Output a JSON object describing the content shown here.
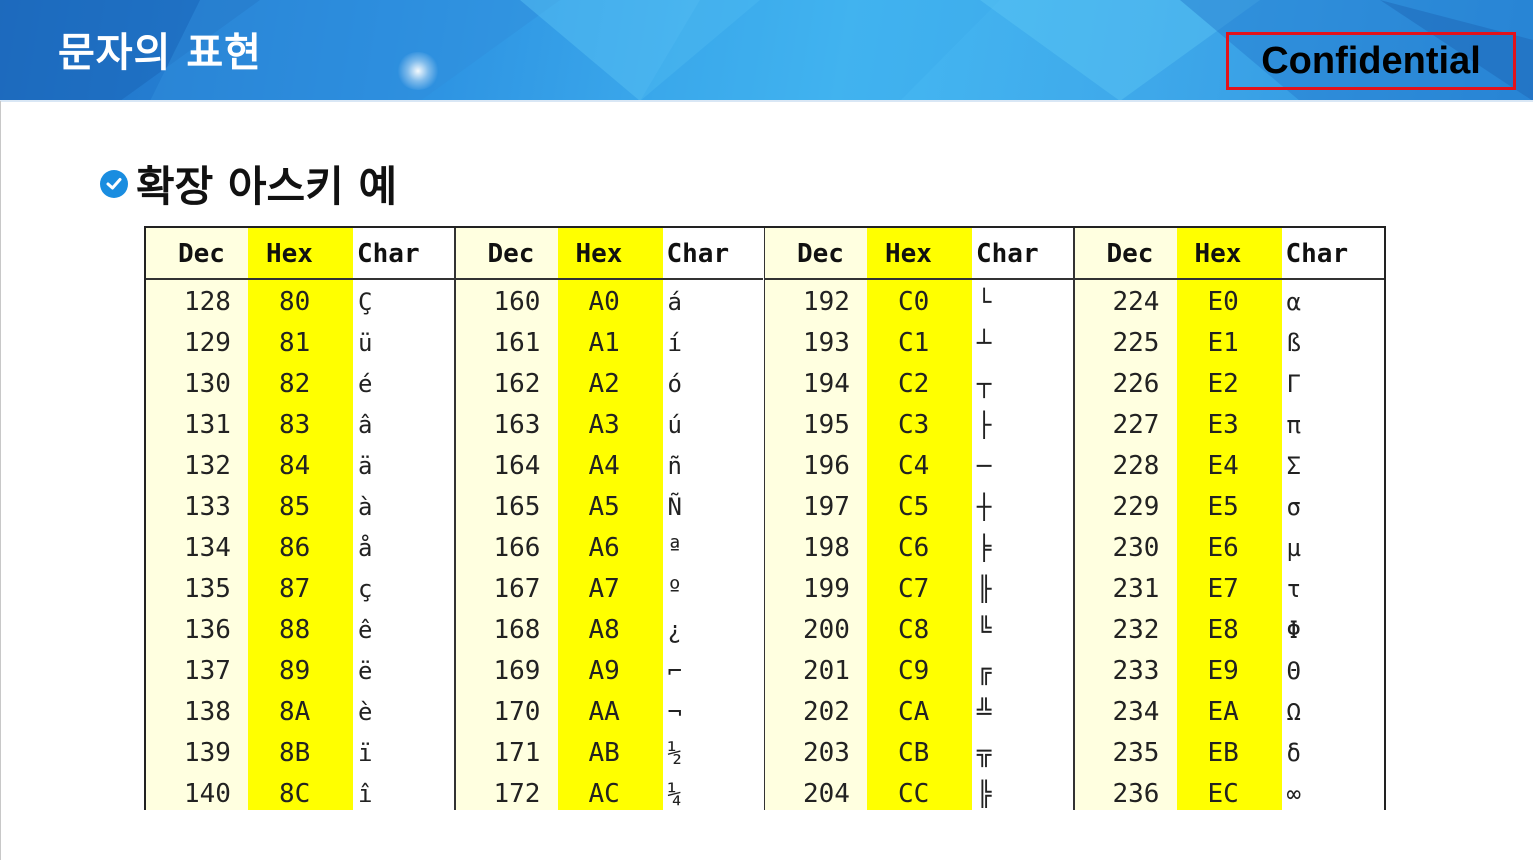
{
  "header": {
    "title": "문자의 표현",
    "badge": "Confidential",
    "colors": {
      "banner": "#2a8ee0",
      "badge_border": "#e3121b"
    }
  },
  "section": {
    "icon": "check-circle-icon",
    "title": "확장 아스키 예"
  },
  "table": {
    "columns": [
      "Dec",
      "Hex",
      "Char"
    ],
    "colors": {
      "dec_column": "#ffffe0",
      "hex_column": "#ffff00"
    },
    "groups": [
      {
        "rows": [
          {
            "dec": "128",
            "hex": "80",
            "char": "Ç"
          },
          {
            "dec": "129",
            "hex": "81",
            "char": "ü"
          },
          {
            "dec": "130",
            "hex": "82",
            "char": "é"
          },
          {
            "dec": "131",
            "hex": "83",
            "char": "â"
          },
          {
            "dec": "132",
            "hex": "84",
            "char": "ä"
          },
          {
            "dec": "133",
            "hex": "85",
            "char": "à"
          },
          {
            "dec": "134",
            "hex": "86",
            "char": "å"
          },
          {
            "dec": "135",
            "hex": "87",
            "char": "ç"
          },
          {
            "dec": "136",
            "hex": "88",
            "char": "ê"
          },
          {
            "dec": "137",
            "hex": "89",
            "char": "ë"
          },
          {
            "dec": "138",
            "hex": "8A",
            "char": "è"
          },
          {
            "dec": "139",
            "hex": "8B",
            "char": "ï"
          },
          {
            "dec": "140",
            "hex": "8C",
            "char": "î"
          }
        ]
      },
      {
        "rows": [
          {
            "dec": "160",
            "hex": "A0",
            "char": "á"
          },
          {
            "dec": "161",
            "hex": "A1",
            "char": "í"
          },
          {
            "dec": "162",
            "hex": "A2",
            "char": "ó"
          },
          {
            "dec": "163",
            "hex": "A3",
            "char": "ú"
          },
          {
            "dec": "164",
            "hex": "A4",
            "char": "ñ"
          },
          {
            "dec": "165",
            "hex": "A5",
            "char": "Ñ"
          },
          {
            "dec": "166",
            "hex": "A6",
            "char": "ª"
          },
          {
            "dec": "167",
            "hex": "A7",
            "char": "º"
          },
          {
            "dec": "168",
            "hex": "A8",
            "char": "¿"
          },
          {
            "dec": "169",
            "hex": "A9",
            "char": "⌐"
          },
          {
            "dec": "170",
            "hex": "AA",
            "char": "¬"
          },
          {
            "dec": "171",
            "hex": "AB",
            "char": "½"
          },
          {
            "dec": "172",
            "hex": "AC",
            "char": "¼"
          }
        ]
      },
      {
        "rows": [
          {
            "dec": "192",
            "hex": "C0",
            "char": "└"
          },
          {
            "dec": "193",
            "hex": "C1",
            "char": "┴"
          },
          {
            "dec": "194",
            "hex": "C2",
            "char": "┬"
          },
          {
            "dec": "195",
            "hex": "C3",
            "char": "├"
          },
          {
            "dec": "196",
            "hex": "C4",
            "char": "─"
          },
          {
            "dec": "197",
            "hex": "C5",
            "char": "┼"
          },
          {
            "dec": "198",
            "hex": "C6",
            "char": "╞"
          },
          {
            "dec": "199",
            "hex": "C7",
            "char": "╟"
          },
          {
            "dec": "200",
            "hex": "C8",
            "char": "╚"
          },
          {
            "dec": "201",
            "hex": "C9",
            "char": "╔"
          },
          {
            "dec": "202",
            "hex": "CA",
            "char": "╩"
          },
          {
            "dec": "203",
            "hex": "CB",
            "char": "╦"
          },
          {
            "dec": "204",
            "hex": "CC",
            "char": "╠"
          }
        ]
      },
      {
        "rows": [
          {
            "dec": "224",
            "hex": "E0",
            "char": "α"
          },
          {
            "dec": "225",
            "hex": "E1",
            "char": "ß"
          },
          {
            "dec": "226",
            "hex": "E2",
            "char": "Γ"
          },
          {
            "dec": "227",
            "hex": "E3",
            "char": "π"
          },
          {
            "dec": "228",
            "hex": "E4",
            "char": "Σ"
          },
          {
            "dec": "229",
            "hex": "E5",
            "char": "σ"
          },
          {
            "dec": "230",
            "hex": "E6",
            "char": "µ"
          },
          {
            "dec": "231",
            "hex": "E7",
            "char": "τ"
          },
          {
            "dec": "232",
            "hex": "E8",
            "char": "Φ"
          },
          {
            "dec": "233",
            "hex": "E9",
            "char": "Θ"
          },
          {
            "dec": "234",
            "hex": "EA",
            "char": "Ω"
          },
          {
            "dec": "235",
            "hex": "EB",
            "char": "δ"
          },
          {
            "dec": "236",
            "hex": "EC",
            "char": "∞"
          }
        ]
      }
    ]
  }
}
